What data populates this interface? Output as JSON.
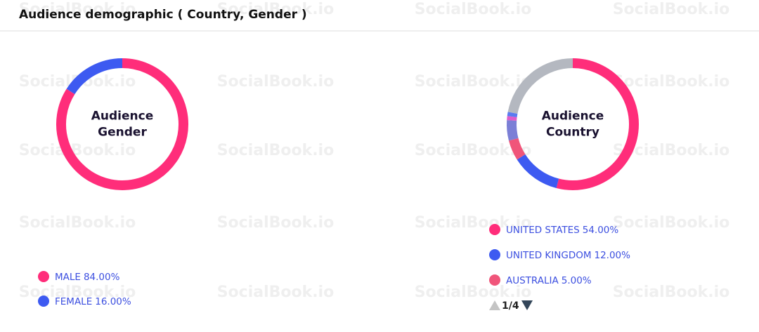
{
  "header": {
    "title": "Audience demographic ( Country, Gender )"
  },
  "watermark": "SocialBook.io",
  "chart_data": [
    {
      "type": "pie",
      "title": "Audience Gender",
      "categories": [
        "MALE",
        "FEMALE"
      ],
      "values": [
        84,
        16
      ],
      "value_labels": [
        "84.00%",
        "16.00%"
      ],
      "colors": [
        "#ff2d7a",
        "#3d5af1"
      ]
    },
    {
      "type": "pie",
      "title": "Audience Country",
      "categories": [
        "UNITED STATES",
        "UNITED KINGDOM",
        "AUSTRALIA",
        null,
        null,
        null,
        null
      ],
      "values": [
        54,
        12,
        5,
        5,
        1,
        1,
        22
      ],
      "value_labels": [
        "54.00%",
        "12.00%",
        "5.00%",
        null,
        null,
        null,
        null
      ],
      "colors": [
        "#ff2d7a",
        "#3d5af1",
        "#f0557a",
        "#7b7fd6",
        "#e05cc8",
        "#5a7bf0",
        "#b4b8c0"
      ],
      "pager": "1/4"
    }
  ]
}
